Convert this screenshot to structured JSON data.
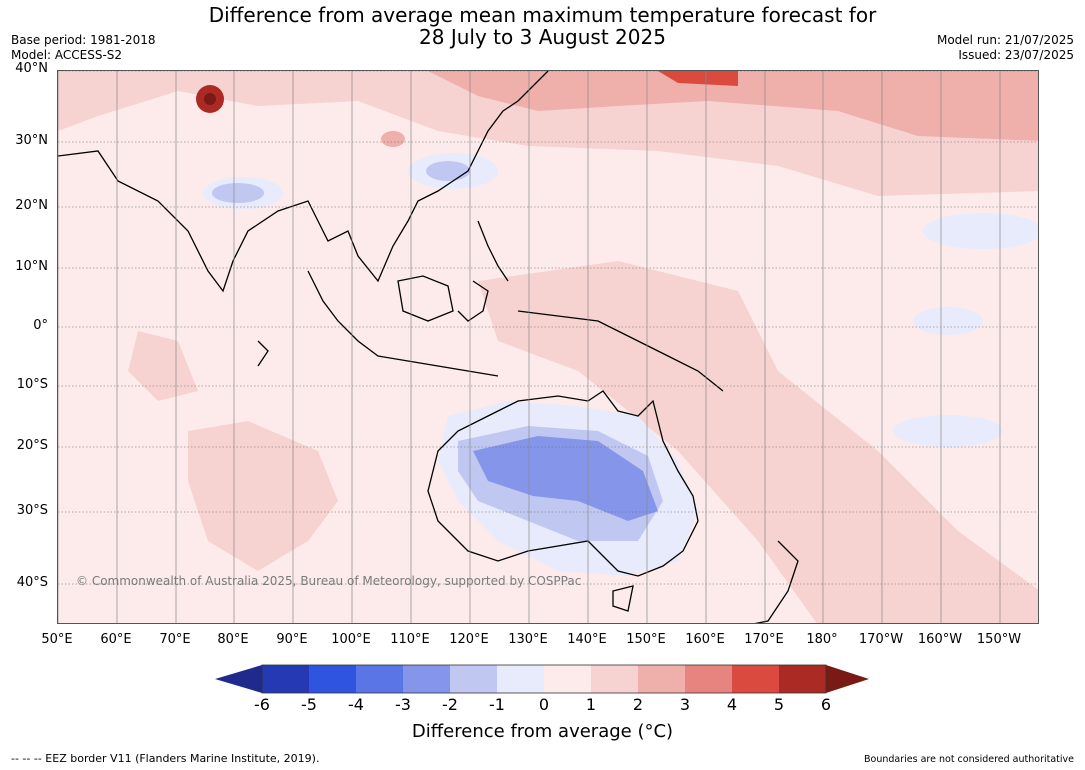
{
  "title": {
    "line1": "Difference from average mean maximum temperature forecast for",
    "line2": "28 July to 3 August 2025"
  },
  "meta": {
    "base_period": "Base period: 1981-2018",
    "model": "Model: ACCESS-S2",
    "model_run": "Model run: 21/07/2025",
    "issued": "Issued: 23/07/2025"
  },
  "map": {
    "latitude_labels": [
      "40°N",
      "30°N",
      "20°N",
      "10°N",
      "0°",
      "10°S",
      "20°S",
      "30°S",
      "40°S"
    ],
    "longitude_labels": [
      "50°E",
      "60°E",
      "70°E",
      "80°E",
      "90°E",
      "100°E",
      "110°E",
      "120°E",
      "130°E",
      "140°E",
      "150°E",
      "160°E",
      "170°E",
      "180°",
      "170°W",
      "160°W",
      "150°W"
    ],
    "copyright": "© Commonwealth of Australia 2025, Bureau of Meteorology, supported by COSPPac"
  },
  "colorbar": {
    "tick_labels": [
      "-6",
      "-5",
      "-4",
      "-3",
      "-2",
      "-1",
      "0",
      "1",
      "2",
      "3",
      "4",
      "5",
      "6"
    ],
    "colors": [
      "#1f2a8c",
      "#2439b3",
      "#2f55e0",
      "#5a76e6",
      "#8596ea",
      "#c0c8f2",
      "#e8ebfb",
      "#fcebea",
      "#f6d3d1",
      "#efafab",
      "#e78480",
      "#db4a3f",
      "#ac2a24",
      "#7a1a14"
    ],
    "title": "Difference from average (°C)"
  },
  "footer": {
    "left": "--  --  -- EEZ border V11 (Flanders Marine Institute, 2019).",
    "right": "Boundaries are not considered authoritative"
  }
}
